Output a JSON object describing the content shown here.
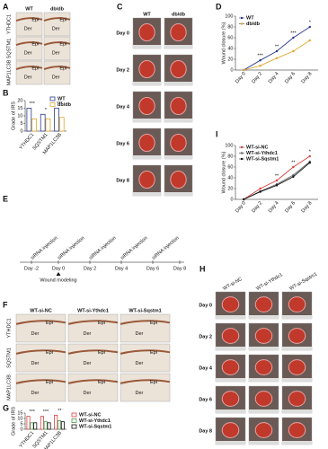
{
  "panel_letters": [
    "A",
    "B",
    "C",
    "D",
    "E",
    "F",
    "G",
    "H",
    "I"
  ],
  "panel_a": {
    "columns": [
      "WT",
      "db/db"
    ],
    "rows": [
      "YTHDC1",
      "SQSTM1",
      "MAP1LC3B"
    ],
    "labels": [
      "Epi",
      "Der"
    ]
  },
  "panel_c": {
    "columns": [
      "WT",
      "db/db"
    ],
    "rows": [
      "Day 0",
      "Day 2",
      "Day 4",
      "Day 6",
      "Day 8"
    ]
  },
  "panel_e": {
    "injections": [
      "siRNA injection",
      "siRNA injection",
      "siRNA injection",
      "siRNA injection",
      "siRNA injection"
    ],
    "days": [
      "Day -2",
      "Day 0",
      "Day 2",
      "Day 4",
      "Day 6",
      "Day 8"
    ],
    "event": "Wound modeling"
  },
  "panel_f": {
    "columns": [
      "WT-si-NC",
      "WT-si-Ythdc1",
      "WT-si-Sqstm1"
    ],
    "rows": [
      "YTHDC1",
      "SQSTM1",
      "MAP1LC3B"
    ],
    "labels": [
      "Epi",
      "Der"
    ]
  },
  "panel_h": {
    "columns": [
      "WT-si-NC",
      "WT-si-Ythdc1",
      "WT-si-Sqstm1"
    ],
    "rows": [
      "Day 0",
      "Day 2",
      "Day 4",
      "Day 6",
      "Day 8"
    ]
  },
  "chart_data": [
    {
      "type": "bar",
      "ylabel": "Grade of IRS",
      "categories": [
        "YTHDC1",
        "SQSTM1",
        "MAP1LC3B"
      ],
      "series": [
        {
          "name": "WT",
          "color": "#2b3a8c",
          "values": [
            15,
            11,
            15
          ]
        },
        {
          "name": "db/db",
          "color": "#e0a82e",
          "values": [
            8,
            8,
            9
          ]
        }
      ],
      "significance": [
        "***",
        "*",
        "***"
      ],
      "ylim": [
        0,
        20
      ],
      "yticks": [
        0,
        5,
        10,
        15,
        20
      ],
      "legend": "upper right"
    },
    {
      "type": "line",
      "ylabel": "Wound closure (%)",
      "categories": [
        "Day 0",
        "Day 2",
        "Day 4",
        "Day 6",
        "Day 8"
      ],
      "series": [
        {
          "name": "WT",
          "color": "#2b3a8c",
          "values": [
            0,
            18,
            35,
            60,
            80
          ]
        },
        {
          "name": "db/db",
          "color": "#e0a82e",
          "values": [
            0,
            8,
            22,
            35,
            55
          ]
        }
      ],
      "significance": [
        null,
        "***",
        "**",
        "***",
        "*"
      ],
      "ylim": [
        0,
        100
      ],
      "yticks": [
        0,
        20,
        40,
        60,
        80,
        100
      ],
      "legend": "upper left"
    },
    {
      "type": "line",
      "ylabel": "Wound closure (%)",
      "categories": [
        "Day 0",
        "Day 2",
        "Day 4",
        "Day 6",
        "Day 8"
      ],
      "series": [
        {
          "name": "WT-si-NC",
          "color": "#d94040",
          "values": [
            0,
            20,
            35,
            60,
            80
          ]
        },
        {
          "name": "WT-si-Ythdc1",
          "color": "#666666",
          "values": [
            0,
            15,
            28,
            45,
            70
          ]
        },
        {
          "name": "WT-si-Sqstm1",
          "color": "#111111",
          "values": [
            0,
            14,
            26,
            42,
            68
          ]
        }
      ],
      "significance": [
        null,
        null,
        "**",
        "**",
        "*"
      ],
      "ylim": [
        0,
        100
      ],
      "yticks": [
        0,
        20,
        40,
        60,
        80,
        100
      ],
      "legend": "upper left"
    },
    {
      "type": "bar",
      "ylabel": "Grade of IRS",
      "categories": [
        "YTHDC1",
        "SQSTM1",
        "MAP1LC3B"
      ],
      "series": [
        {
          "name": "WT-si-NC",
          "color": "#d94040",
          "values": [
            12,
            12,
            13
          ]
        },
        {
          "name": "WT-si-Ythdc1",
          "color": "#4a9a4a",
          "values": [
            6,
            7,
            8
          ]
        },
        {
          "name": "WT-si-Sqstm1",
          "color": "#111111",
          "values": [
            6,
            6,
            7
          ]
        }
      ],
      "significance": [
        "***",
        "***",
        "**"
      ],
      "ylim": [
        0,
        15
      ],
      "yticks": [
        0,
        5,
        10,
        15
      ],
      "legend": "right"
    }
  ]
}
